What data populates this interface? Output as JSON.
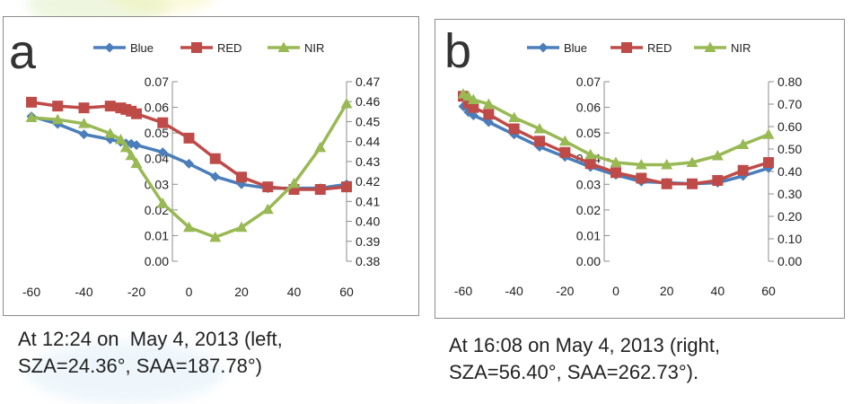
{
  "captions": {
    "a": "At 12:24 on  May 4, 2013 (left,\nSZA=24.36°, SAA=187.78°)",
    "b": "At 16:08 on May 4, 2013 (right,\nSZA=56.40°, SAA=262.73°)."
  },
  "chart_data": [
    {
      "panel_label": "a",
      "type": "line",
      "legend": [
        "Blue",
        "RED",
        "NIR"
      ],
      "legend_position": "top",
      "grid": false,
      "colors": {
        "Blue": "#4a7ebb",
        "RED": "#be4b48",
        "NIR": "#98b954"
      },
      "markers": {
        "Blue": "diamond",
        "RED": "square",
        "NIR": "triangle"
      },
      "xlim": [
        -60,
        60
      ],
      "xticks": [
        -60,
        -40,
        -20,
        0,
        20,
        40,
        60
      ],
      "ylim_left": [
        0,
        0.07
      ],
      "yticks_left": [
        0.0,
        0.01,
        0.02,
        0.03,
        0.04,
        0.05,
        0.06,
        0.07
      ],
      "ylim_right": [
        0.38,
        0.47
      ],
      "yticks_right": [
        0.38,
        0.39,
        0.4,
        0.41,
        0.42,
        0.43,
        0.44,
        0.45,
        0.46,
        0.47
      ],
      "series": [
        {
          "name": "Blue",
          "axis": "left",
          "x": [
            -60,
            -50,
            -40,
            -30,
            -26,
            -24,
            -22,
            -20,
            -10,
            0,
            10,
            20,
            30,
            40,
            50,
            60
          ],
          "y": [
            0.0565,
            0.0535,
            0.0495,
            0.0475,
            0.0465,
            0.046,
            0.0458,
            0.0453,
            0.0425,
            0.038,
            0.033,
            0.03,
            0.0285,
            0.0285,
            0.0285,
            0.03
          ]
        },
        {
          "name": "RED",
          "axis": "left",
          "x": [
            -60,
            -50,
            -40,
            -30,
            -26,
            -24,
            -22,
            -20,
            -10,
            0,
            10,
            20,
            30,
            40,
            50,
            60
          ],
          "y": [
            0.062,
            0.0605,
            0.0598,
            0.0605,
            0.0598,
            0.0592,
            0.0585,
            0.0575,
            0.054,
            0.048,
            0.04,
            0.0328,
            0.029,
            0.028,
            0.028,
            0.029
          ]
        },
        {
          "name": "NIR",
          "axis": "right",
          "x": [
            -60,
            -50,
            -40,
            -30,
            -26,
            -24,
            -22,
            -20,
            -10,
            0,
            10,
            20,
            30,
            40,
            50,
            60
          ],
          "y": [
            0.452,
            0.451,
            0.449,
            0.444,
            0.441,
            0.437,
            0.433,
            0.429,
            0.409,
            0.397,
            0.392,
            0.397,
            0.406,
            0.419,
            0.437,
            0.459
          ]
        }
      ]
    },
    {
      "panel_label": "b",
      "type": "line",
      "legend": [
        "Blue",
        "RED",
        "NIR"
      ],
      "legend_position": "top",
      "grid": false,
      "colors": {
        "Blue": "#4a7ebb",
        "RED": "#be4b48",
        "NIR": "#98b954"
      },
      "markers": {
        "Blue": "diamond",
        "RED": "square",
        "NIR": "triangle"
      },
      "xlim": [
        -60,
        60
      ],
      "xticks": [
        -60,
        -40,
        -20,
        0,
        20,
        40,
        60
      ],
      "ylim_left": [
        0,
        0.07
      ],
      "yticks_left": [
        0.0,
        0.01,
        0.02,
        0.03,
        0.04,
        0.05,
        0.06,
        0.07
      ],
      "ylim_right": [
        0,
        0.8
      ],
      "yticks_right": [
        0.0,
        0.1,
        0.2,
        0.3,
        0.4,
        0.5,
        0.6,
        0.7,
        0.8
      ],
      "series": [
        {
          "name": "Blue",
          "axis": "right",
          "x": [
            -60,
            -58,
            -56,
            -50,
            -40,
            -30,
            -20,
            -10,
            0,
            10,
            20,
            30,
            40,
            50,
            60
          ],
          "y": [
            0.69,
            0.665,
            0.65,
            0.62,
            0.565,
            0.51,
            0.465,
            0.42,
            0.385,
            0.355,
            0.35,
            0.345,
            0.35,
            0.38,
            0.415
          ]
        },
        {
          "name": "RED",
          "axis": "right",
          "x": [
            -60,
            -58,
            -56,
            -50,
            -40,
            -30,
            -20,
            -10,
            0,
            10,
            20,
            30,
            40,
            50,
            60
          ],
          "y": [
            0.735,
            0.705,
            0.685,
            0.655,
            0.59,
            0.535,
            0.485,
            0.435,
            0.395,
            0.37,
            0.345,
            0.345,
            0.36,
            0.405,
            0.44
          ]
        },
        {
          "name": "NIR",
          "axis": "right",
          "x": [
            -60,
            -58,
            -56,
            -50,
            -40,
            -30,
            -20,
            -10,
            0,
            10,
            20,
            30,
            40,
            50,
            60
          ],
          "y": [
            0.745,
            0.735,
            0.72,
            0.7,
            0.64,
            0.59,
            0.535,
            0.475,
            0.44,
            0.43,
            0.43,
            0.44,
            0.47,
            0.52,
            0.565
          ]
        }
      ]
    }
  ]
}
